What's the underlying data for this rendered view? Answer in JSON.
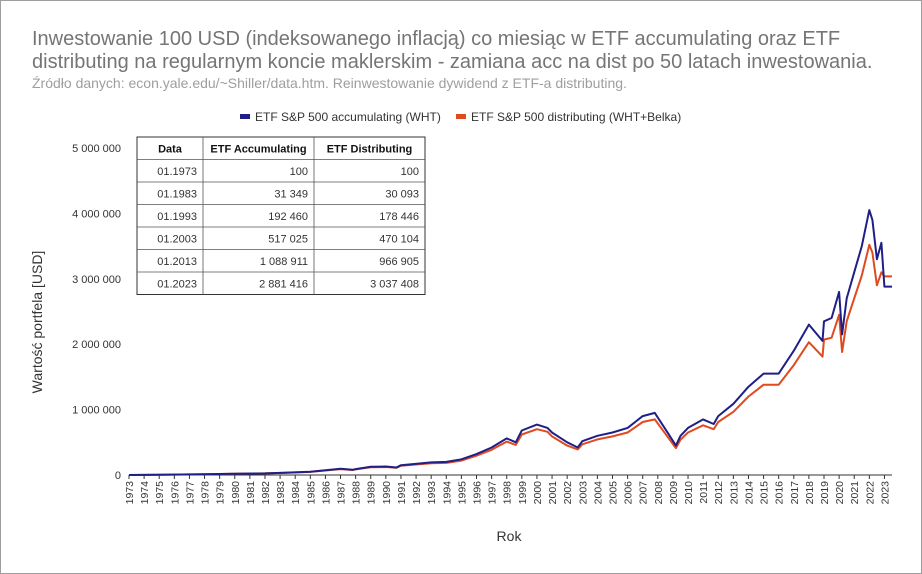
{
  "chart_data": {
    "type": "line",
    "title": "Inwestowanie 100 USD (indeksowanego inflacją) co miesiąc w ETF accumulating oraz ETF distributing na regularnym koncie maklerskim - zamiana acc na dist po 50 latach inwestowania.",
    "subtitle": "Źródło danych: econ.yale.edu/~Shiller/data.htm. Reinwestowanie dywidend z ETF-a distributing.",
    "xlabel": "Rok",
    "ylabel": "Wartość portfela [USD]",
    "xlim": [
      1973,
      2023.5
    ],
    "ylim": [
      0,
      5000000
    ],
    "y_ticks": [
      0,
      1000000,
      2000000,
      3000000,
      4000000,
      5000000
    ],
    "y_tick_labels": [
      "0",
      "1 000 000",
      "2 000 000",
      "3 000 000",
      "4 000 000",
      "5 000 000"
    ],
    "x_tick_labels": [
      "1973",
      "1974",
      "1975",
      "1976",
      "1977",
      "1978",
      "1979",
      "1980",
      "1981",
      "1982",
      "1983",
      "1984",
      "1985",
      "1986",
      "1987",
      "1988",
      "1989",
      "1990",
      "1991",
      "1992",
      "1993",
      "1994",
      "1995",
      "1996",
      "1997",
      "1998",
      "1999",
      "2000",
      "2001",
      "2002",
      "2003",
      "2004",
      "2005",
      "2006",
      "2007",
      "2008",
      "2009",
      "2010",
      "2011",
      "2012",
      "2013",
      "2014",
      "2015",
      "2016",
      "2017",
      "2018",
      "2019",
      "2020",
      "2021",
      "2022",
      "2023"
    ],
    "grid": false,
    "legend_position": "top-center",
    "colors": {
      "acc": "#1f1f87",
      "dist": "#e04a1f",
      "axis": "#333333",
      "text": "#333333"
    },
    "series": [
      {
        "name": "ETF S&P 500 accumulating (WHT)",
        "points": [
          [
            1973,
            100
          ],
          [
            1975,
            5000
          ],
          [
            1978,
            12000
          ],
          [
            1980,
            20000
          ],
          [
            1982,
            25000
          ],
          [
            1983,
            31349
          ],
          [
            1985,
            50000
          ],
          [
            1987,
            95000
          ],
          [
            1987.8,
            80000
          ],
          [
            1988,
            90000
          ],
          [
            1989,
            125000
          ],
          [
            1990,
            130000
          ],
          [
            1990.7,
            115000
          ],
          [
            1991,
            150000
          ],
          [
            1993,
            192460
          ],
          [
            1994,
            200000
          ],
          [
            1995,
            240000
          ],
          [
            1996,
            320000
          ],
          [
            1997,
            420000
          ],
          [
            1998,
            560000
          ],
          [
            1998.6,
            500000
          ],
          [
            1999,
            680000
          ],
          [
            2000,
            770000
          ],
          [
            2000.7,
            720000
          ],
          [
            2001,
            650000
          ],
          [
            2002,
            500000
          ],
          [
            2002.7,
            420000
          ],
          [
            2003,
            517025
          ],
          [
            2004,
            600000
          ],
          [
            2005,
            650000
          ],
          [
            2006,
            720000
          ],
          [
            2007,
            900000
          ],
          [
            2007.8,
            950000
          ],
          [
            2008.5,
            700000
          ],
          [
            2009.2,
            450000
          ],
          [
            2009.5,
            600000
          ],
          [
            2010,
            720000
          ],
          [
            2011,
            850000
          ],
          [
            2011.7,
            780000
          ],
          [
            2012,
            900000
          ],
          [
            2013,
            1088911
          ],
          [
            2014,
            1350000
          ],
          [
            2015,
            1550000
          ],
          [
            2016,
            1550000
          ],
          [
            2017,
            1900000
          ],
          [
            2018,
            2300000
          ],
          [
            2018.9,
            2050000
          ],
          [
            2019,
            2350000
          ],
          [
            2019.5,
            2400000
          ],
          [
            2020,
            2800000
          ],
          [
            2020.2,
            2150000
          ],
          [
            2020.5,
            2700000
          ],
          [
            2021,
            3100000
          ],
          [
            2021.5,
            3500000
          ],
          [
            2022,
            4050000
          ],
          [
            2022.2,
            3900000
          ],
          [
            2022.5,
            3300000
          ],
          [
            2022.8,
            3550000
          ],
          [
            2023,
            2881416
          ],
          [
            2023.5,
            2881416
          ]
        ]
      },
      {
        "name": "ETF S&P 500 distributing (WHT+Belka)",
        "points": [
          [
            1973,
            100
          ],
          [
            1975,
            4800
          ],
          [
            1978,
            11500
          ],
          [
            1980,
            19000
          ],
          [
            1982,
            24000
          ],
          [
            1983,
            30093
          ],
          [
            1985,
            48000
          ],
          [
            1987,
            90000
          ],
          [
            1987.8,
            76000
          ],
          [
            1988,
            85000
          ],
          [
            1989,
            118000
          ],
          [
            1990,
            123000
          ],
          [
            1990.7,
            110000
          ],
          [
            1991,
            142000
          ],
          [
            1993,
            178446
          ],
          [
            1994,
            185000
          ],
          [
            1995,
            220000
          ],
          [
            1996,
            295000
          ],
          [
            1997,
            385000
          ],
          [
            1998,
            510000
          ],
          [
            1998.6,
            460000
          ],
          [
            1999,
            620000
          ],
          [
            2000,
            700000
          ],
          [
            2000.7,
            660000
          ],
          [
            2001,
            590000
          ],
          [
            2002,
            450000
          ],
          [
            2002.7,
            390000
          ],
          [
            2003,
            470104
          ],
          [
            2004,
            545000
          ],
          [
            2005,
            590000
          ],
          [
            2006,
            650000
          ],
          [
            2007,
            810000
          ],
          [
            2007.8,
            850000
          ],
          [
            2008.5,
            630000
          ],
          [
            2009.2,
            410000
          ],
          [
            2009.5,
            540000
          ],
          [
            2010,
            650000
          ],
          [
            2011,
            760000
          ],
          [
            2011.7,
            700000
          ],
          [
            2012,
            810000
          ],
          [
            2013,
            966905
          ],
          [
            2014,
            1200000
          ],
          [
            2015,
            1380000
          ],
          [
            2016,
            1380000
          ],
          [
            2017,
            1680000
          ],
          [
            2018,
            2030000
          ],
          [
            2018.9,
            1810000
          ],
          [
            2019,
            2070000
          ],
          [
            2019.5,
            2100000
          ],
          [
            2020,
            2450000
          ],
          [
            2020.2,
            1880000
          ],
          [
            2020.5,
            2350000
          ],
          [
            2021,
            2700000
          ],
          [
            2021.5,
            3050000
          ],
          [
            2022,
            3520000
          ],
          [
            2022.2,
            3400000
          ],
          [
            2022.5,
            2900000
          ],
          [
            2022.8,
            3100000
          ],
          [
            2023,
            3037408
          ],
          [
            2023.5,
            3037408
          ]
        ]
      }
    ]
  },
  "data_table": {
    "headers": [
      "Data",
      "ETF Accumulating",
      "ETF Distributing"
    ],
    "rows": [
      [
        "01.1973",
        "100",
        "100"
      ],
      [
        "01.1983",
        "31 349",
        "30 093"
      ],
      [
        "01.1993",
        "192 460",
        "178 446"
      ],
      [
        "01.2003",
        "517 025",
        "470 104"
      ],
      [
        "01.2013",
        "1 088 911",
        "966 905"
      ],
      [
        "01.2023",
        "2 881 416",
        "3 037 408"
      ]
    ]
  }
}
